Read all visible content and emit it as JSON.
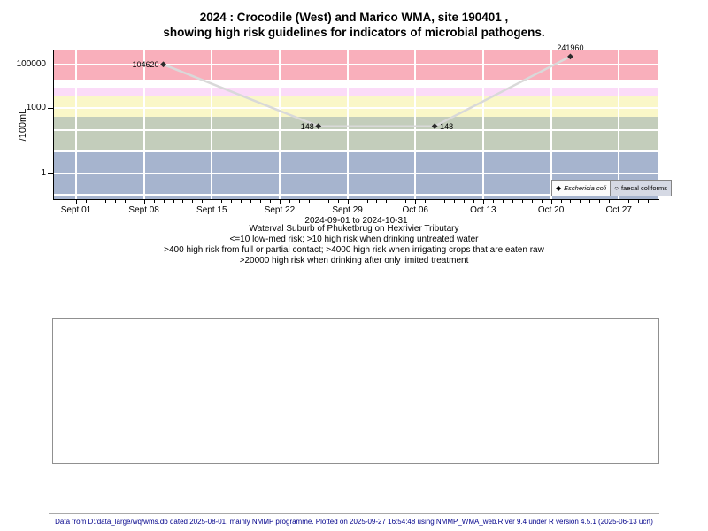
{
  "title": {
    "line1": "2024 : Crocodile (West) and Marico WMA, site 190401 ,",
    "line2": "showing high risk guidelines for indicators of microbial pathogens."
  },
  "chart_data": {
    "type": "scatter",
    "y_scale": "log",
    "ylabel": "/100mL",
    "ylim": [
      0.065,
      460000
    ],
    "y_tick_values": [
      100000,
      1000,
      1
    ],
    "y_tick_labels": [
      "100000",
      "1000",
      "1"
    ],
    "x_axis": {
      "start_date": "2024-09-01",
      "end_date": "2024-10-31",
      "tick_labels": [
        "Sept 01",
        "Sept 08",
        "Sept 15",
        "Sept 22",
        "Sept 29",
        "Oct 06",
        "Oct 13",
        "Oct 20",
        "Oct 27"
      ],
      "tick_day_offsets": [
        0,
        7,
        14,
        21,
        28,
        35,
        42,
        49,
        56
      ],
      "minor_tick_interval_days": 1,
      "range_label": "2024-09-01 to 2024-10-31"
    },
    "grid": {
      "horizontal_decades": [
        0.1,
        1,
        10,
        100,
        1000,
        10000,
        100000
      ],
      "color": "#FFFFFF"
    },
    "bands": [
      {
        "from": 0.065,
        "to": 10,
        "color": "#A6B4CE"
      },
      {
        "from": 10,
        "to": 400,
        "color": "#C3CDBB"
      },
      {
        "from": 400,
        "to": 4000,
        "color": "#FAF7C8"
      },
      {
        "from": 4000,
        "to": 10000,
        "color": "#FBDBF8"
      },
      {
        "from": 10000,
        "to": 20000,
        "color": "#FFFFFF"
      },
      {
        "from": 20000,
        "to": 460000,
        "color": "#F9AFBB"
      }
    ],
    "series": [
      {
        "name": "Eschericia coli",
        "marker": "filled-diamond",
        "line_color": "#D9D9D9",
        "marker_color": "#2B2B2B",
        "points": [
          {
            "date": "2024-09-10",
            "value": 104620,
            "label": "104620",
            "label_side": "left"
          },
          {
            "date": "2024-09-26",
            "value": 148,
            "label": "148",
            "label_side": "left"
          },
          {
            "date": "2024-10-08",
            "value": 148,
            "label": "148",
            "label_side": "right"
          },
          {
            "date": "2024-10-22",
            "value": 241960,
            "label": "241960",
            "label_side": "above"
          }
        ]
      },
      {
        "name": "faecal coliforms",
        "marker": "open-circle",
        "points": []
      }
    ],
    "legend": {
      "position": "bottom-right",
      "entries": [
        {
          "label": "Eschericia coli",
          "marker": "filled-diamond"
        },
        {
          "label": "faecal coliforms",
          "marker": "open-circle"
        }
      ]
    }
  },
  "caption": {
    "line1": "Waterval Suburb of Phuketbrug on Hexrivier Tributary",
    "line2": "<=10 low-med risk; >10 high risk when drinking untreated water",
    "line3": ">400 high risk from full or partial contact; >4000 high risk when irrigating crops that are eaten raw",
    "line4": ">20000 high risk when drinking after only limited treatment"
  },
  "footer": {
    "text": "Data from D:/data_large/wq/wms.db dated 2025-08-01, mainly NMMP programme. Plotted on 2025-09-27 16:54:48 using NMMP_WMA_web.R ver 9.4 under R version 4.5.1 (2025-06-13 ucrt)"
  },
  "colors": {
    "footer_text": "#00008B",
    "legend_active_bg": "#FBFBFB",
    "legend_bg": "#D5D9E4",
    "axis": "#000000"
  }
}
